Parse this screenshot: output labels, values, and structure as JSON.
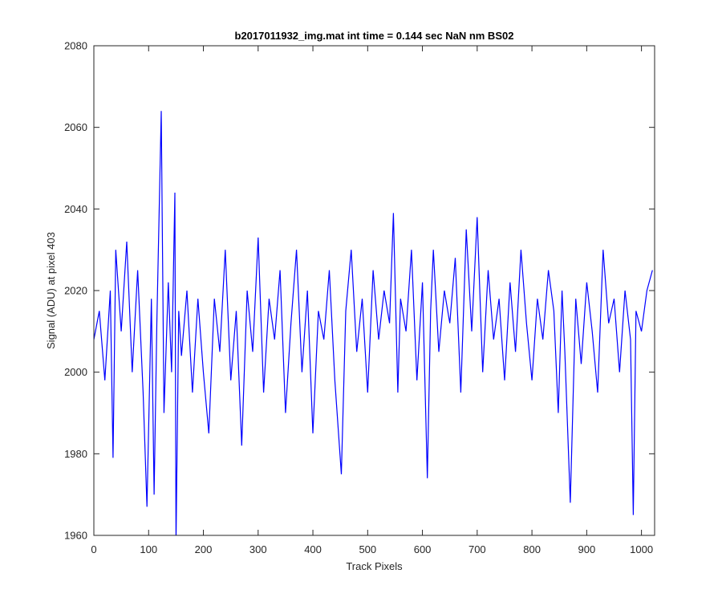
{
  "chart_data": {
    "type": "line",
    "title": "b2017011932_img.mat int time = 0.144 sec  NaN nm BS02",
    "xlabel": "Track Pixels",
    "ylabel": "Signal (ADU) at pixel 403",
    "xlim": [
      0,
      1024
    ],
    "ylim": [
      1960,
      2080
    ],
    "xticks": [
      0,
      100,
      200,
      300,
      400,
      500,
      600,
      700,
      800,
      900,
      1000
    ],
    "yticks": [
      1960,
      1980,
      2000,
      2020,
      2040,
      2060,
      2080
    ],
    "grid": false,
    "series": [
      {
        "color": "#0000ff",
        "x": [
          0,
          10,
          20,
          30,
          35,
          40,
          50,
          60,
          70,
          80,
          90,
          97,
          105,
          110,
          115,
          123,
          128,
          136,
          142,
          148,
          150,
          155,
          160,
          170,
          180,
          190,
          200,
          210,
          220,
          230,
          240,
          250,
          260,
          270,
          280,
          290,
          300,
          310,
          320,
          330,
          340,
          350,
          360,
          370,
          380,
          390,
          400,
          410,
          420,
          430,
          440,
          452,
          460,
          470,
          480,
          490,
          500,
          510,
          520,
          530,
          540,
          547,
          555,
          560,
          570,
          580,
          590,
          600,
          609,
          615,
          620,
          630,
          640,
          650,
          660,
          670,
          680,
          690,
          700,
          710,
          720,
          730,
          740,
          750,
          760,
          770,
          780,
          790,
          800,
          810,
          820,
          830,
          840,
          848,
          855,
          860,
          870,
          880,
          890,
          900,
          910,
          920,
          930,
          940,
          950,
          960,
          970,
          980,
          985,
          990,
          1000,
          1010,
          1020
        ],
        "values": [
          2008,
          2015,
          1998,
          2020,
          1979,
          2030,
          2010,
          2032,
          2000,
          2025,
          1995,
          1967,
          2018,
          1970,
          2012,
          2064,
          1990,
          2022,
          2000,
          2044,
          1958,
          2015,
          2004,
          2020,
          1995,
          2018,
          2000,
          1985,
          2018,
          2005,
          2030,
          1998,
          2015,
          1982,
          2020,
          2005,
          2033,
          1995,
          2018,
          2008,
          2025,
          1990,
          2012,
          2030,
          2000,
          2020,
          1985,
          2015,
          2008,
          2025,
          1998,
          1975,
          2015,
          2030,
          2005,
          2018,
          1995,
          2025,
          2008,
          2020,
          2012,
          2039,
          1995,
          2018,
          2010,
          2030,
          1998,
          2022,
          1974,
          2015,
          2030,
          2005,
          2020,
          2012,
          2028,
          1995,
          2035,
          2010,
          2038,
          2000,
          2025,
          2008,
          2018,
          1998,
          2022,
          2005,
          2030,
          2012,
          1998,
          2018,
          2008,
          2025,
          2015,
          1990,
          2020,
          2005,
          1968,
          2018,
          2002,
          2022,
          2010,
          1995,
          2030,
          2012,
          2018,
          2000,
          2020,
          2008,
          1965,
          2015,
          2010,
          2020,
          2025
        ]
      }
    ]
  }
}
